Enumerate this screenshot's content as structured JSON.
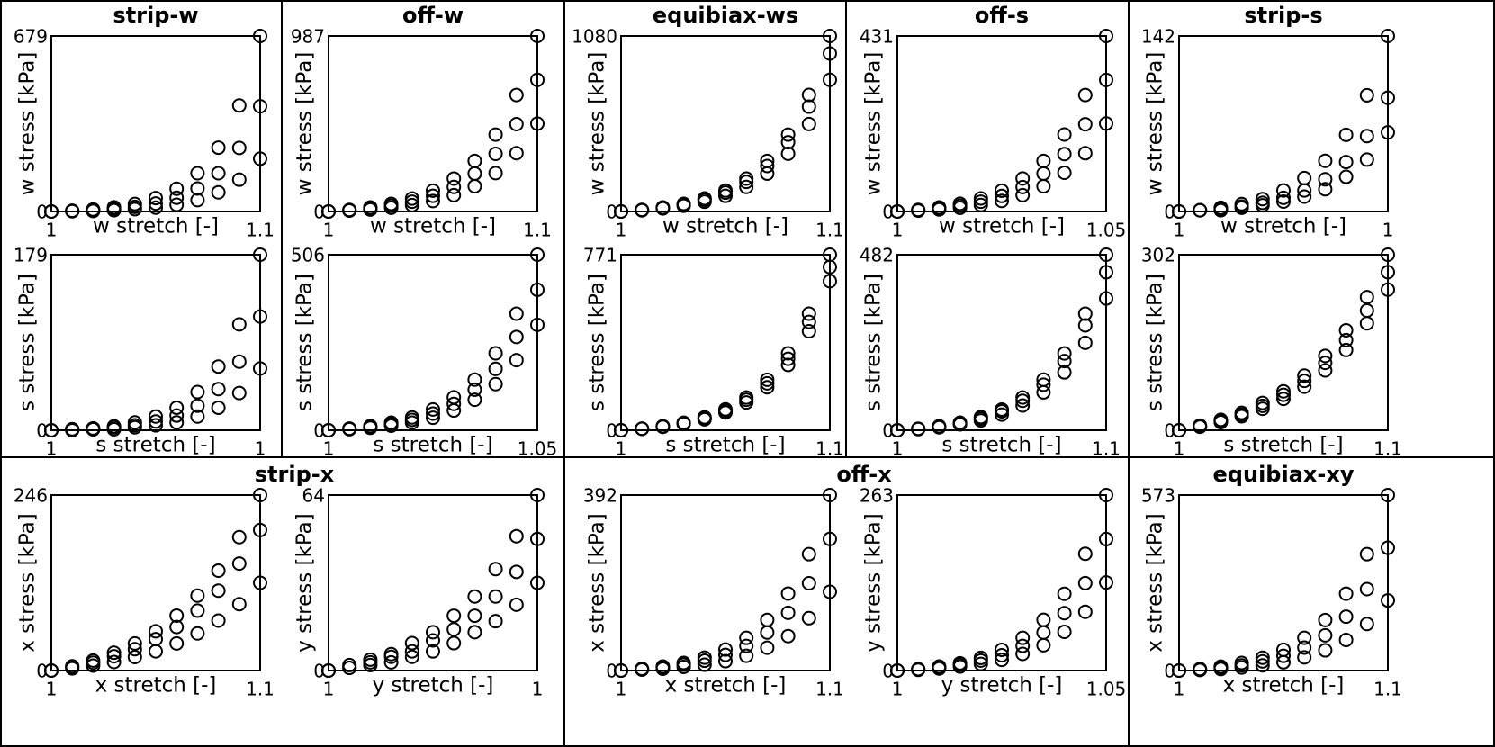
{
  "chart_data": [
    {
      "type": "scatter",
      "title": "strip-w",
      "xlabel": "w stretch [-]",
      "ylabel": "w stress [kPa]",
      "color": "#000000",
      "x": [
        1,
        1.01,
        1.02,
        1.03,
        1.04,
        1.05,
        1.06,
        1.07,
        1.08,
        1.09,
        1.1
      ],
      "xlim": [
        1,
        1.1
      ],
      "xticks": [
        1,
        1.1
      ],
      "ylim": [
        0,
        679
      ],
      "yticks": [
        0,
        679
      ],
      "series": [
        {
          "values": [
            0,
            3,
            8,
            16,
            29,
            52,
            88,
            148,
            247,
            410,
            679
          ]
        },
        {
          "values": [
            0,
            2,
            5,
            10,
            18,
            31,
            53,
            89,
            148,
            246,
            407
          ]
        },
        {
          "values": [
            0,
            1,
            2,
            5,
            9,
            15,
            26,
            44,
            74,
            123,
            204
          ]
        }
      ]
    },
    {
      "type": "scatter",
      "xlabel": "s stretch [-]",
      "ylabel": "s stress [kPa]",
      "color": "#000000",
      "x": [
        1,
        1.004,
        1.008,
        1.012,
        1.016,
        1.02,
        1.024,
        1.028,
        1.032,
        1.036,
        1.04
      ],
      "xlim": [
        1,
        1.04
      ],
      "xticks": [
        1,
        {
          "value": 1.04,
          "label": "1"
        }
      ],
      "ylim": [
        0,
        179
      ],
      "yticks": [
        0,
        179
      ],
      "series": [
        {
          "values": [
            0,
            1,
            2,
            4,
            8,
            14,
            23,
            39,
            65,
            108,
            179
          ]
        },
        {
          "values": [
            0,
            1,
            1,
            3,
            5,
            9,
            15,
            25,
            42,
            70,
            116
          ]
        },
        {
          "values": [
            0,
            0,
            1,
            1,
            3,
            5,
            8,
            14,
            23,
            38,
            63
          ]
        }
      ]
    },
    {
      "type": "scatter",
      "title": "off-w",
      "xlabel": "w stretch [-]",
      "ylabel": "w stress [kPa]",
      "color": "#000000",
      "x": [
        1,
        1.01,
        1.02,
        1.03,
        1.04,
        1.05,
        1.06,
        1.07,
        1.08,
        1.09,
        1.1
      ],
      "xlim": [
        1,
        1.1
      ],
      "xticks": [
        1,
        1.1
      ],
      "ylim": [
        0,
        987
      ],
      "yticks": [
        0,
        987
      ],
      "series": [
        {
          "values": [
            0,
            9,
            23,
            43,
            73,
            117,
            185,
            284,
            432,
            655,
            987
          ]
        },
        {
          "values": [
            0,
            7,
            17,
            32,
            55,
            88,
            138,
            213,
            324,
            491,
            740
          ]
        },
        {
          "values": [
            0,
            5,
            11,
            21,
            36,
            59,
            92,
            142,
            216,
            328,
            494
          ]
        }
      ]
    },
    {
      "type": "scatter",
      "xlabel": "s stretch [-]",
      "ylabel": "s stress [kPa]",
      "color": "#000000",
      "x": [
        1,
        1.005,
        1.01,
        1.015,
        1.02,
        1.025,
        1.03,
        1.035,
        1.04,
        1.045,
        1.05
      ],
      "xlim": [
        1,
        1.05
      ],
      "xticks": [
        1,
        1.05
      ],
      "ylim": [
        0,
        506
      ],
      "yticks": [
        0,
        506
      ],
      "series": [
        {
          "values": [
            0,
            5,
            12,
            22,
            37,
            60,
            95,
            146,
            222,
            336,
            506
          ]
        },
        {
          "values": [
            0,
            4,
            9,
            18,
            30,
            48,
            76,
            117,
            177,
            269,
            405
          ]
        },
        {
          "values": [
            0,
            3,
            7,
            13,
            22,
            36,
            57,
            88,
            133,
            202,
            304
          ]
        }
      ]
    },
    {
      "type": "scatter",
      "title": "equibiax-ws",
      "xlabel": "w stretch [-]",
      "ylabel": "w stress [kPa]",
      "color": "#000000",
      "x": [
        1,
        1.01,
        1.02,
        1.03,
        1.04,
        1.05,
        1.06,
        1.07,
        1.08,
        1.09,
        1.1
      ],
      "xlim": [
        1,
        1.1
      ],
      "xticks": [
        1,
        1.1
      ],
      "ylim": [
        0,
        1080
      ],
      "yticks": [
        0,
        1080
      ],
      "series": [
        {
          "values": [
            0,
            10,
            25,
            47,
            80,
            129,
            202,
            311,
            473,
            717,
            1080
          ]
        },
        {
          "values": [
            0,
            9,
            22,
            42,
            72,
            116,
            182,
            280,
            426,
            645,
            972
          ]
        },
        {
          "values": [
            0,
            7,
            19,
            35,
            60,
            96,
            151,
            233,
            355,
            538,
            810
          ]
        }
      ]
    },
    {
      "type": "scatter",
      "xlabel": "s stretch [-]",
      "ylabel": "s stress [kPa]",
      "color": "#000000",
      "x": [
        1,
        1.01,
        1.02,
        1.03,
        1.04,
        1.05,
        1.06,
        1.07,
        1.08,
        1.09,
        1.1
      ],
      "xlim": [
        1,
        1.1
      ],
      "xticks": [
        1,
        1.1
      ],
      "ylim": [
        0,
        771
      ],
      "yticks": [
        0,
        771
      ],
      "series": [
        {
          "values": [
            0,
            7,
            18,
            33,
            57,
            92,
            144,
            222,
            338,
            512,
            771
          ]
        },
        {
          "values": [
            0,
            7,
            16,
            31,
            53,
            85,
            134,
            206,
            314,
            476,
            717
          ]
        },
        {
          "values": [
            0,
            6,
            15,
            28,
            48,
            78,
            122,
            189,
            287,
            435,
            655
          ]
        }
      ]
    },
    {
      "type": "scatter",
      "title": "off-s",
      "xlabel": "w stretch [-]",
      "ylabel": "w stress [kPa]",
      "color": "#000000",
      "x": [
        1,
        1.005,
        1.01,
        1.015,
        1.02,
        1.025,
        1.03,
        1.035,
        1.04,
        1.045,
        1.05
      ],
      "xlim": [
        1,
        1.05
      ],
      "xticks": [
        1,
        1.05
      ],
      "ylim": [
        0,
        431
      ],
      "yticks": [
        0,
        431
      ],
      "series": [
        {
          "values": [
            0,
            4,
            10,
            19,
            32,
            51,
            81,
            124,
            189,
            286,
            431
          ]
        },
        {
          "values": [
            0,
            3,
            7,
            14,
            24,
            38,
            60,
            93,
            141,
            214,
            323
          ]
        },
        {
          "values": [
            0,
            2,
            5,
            9,
            16,
            26,
            40,
            62,
            95,
            143,
            216
          ]
        }
      ]
    },
    {
      "type": "scatter",
      "xlabel": "s stretch [-]",
      "ylabel": "s stress [kPa]",
      "color": "#000000",
      "x": [
        1,
        1.01,
        1.02,
        1.03,
        1.04,
        1.05,
        1.06,
        1.07,
        1.08,
        1.09,
        1.1
      ],
      "xlim": [
        1,
        1.1
      ],
      "xticks": [
        1,
        1.1
      ],
      "ylim": [
        0,
        482
      ],
      "yticks": [
        0,
        482
      ],
      "series": [
        {
          "values": [
            0,
            4,
            11,
            21,
            36,
            57,
            90,
            139,
            211,
            320,
            482
          ]
        },
        {
          "values": [
            0,
            4,
            10,
            19,
            32,
            52,
            81,
            125,
            190,
            288,
            434
          ]
        },
        {
          "values": [
            0,
            3,
            8,
            16,
            27,
            43,
            68,
            104,
            159,
            240,
            362
          ]
        }
      ]
    },
    {
      "type": "scatter",
      "title": "strip-s",
      "xlabel": "w stretch [-]",
      "ylabel": "w stress [kPa]",
      "color": "#000000",
      "x": [
        1,
        1.002,
        1.004,
        1.006,
        1.008,
        1.01,
        1.012,
        1.014,
        1.016,
        1.018,
        1.02
      ],
      "xlim": [
        1,
        1.02
      ],
      "xticks": [
        1,
        {
          "value": 1.02,
          "label": "1"
        }
      ],
      "ylim": [
        0,
        142
      ],
      "yticks": [
        0,
        142
      ],
      "series": [
        {
          "values": [
            0,
            1,
            3,
            6,
            10,
            17,
            27,
            41,
            62,
            94,
            142
          ]
        },
        {
          "values": [
            0,
            1,
            2,
            4,
            7,
            11,
            17,
            26,
            40,
            61,
            92
          ]
        },
        {
          "values": [
            0,
            1,
            1,
            3,
            5,
            8,
            12,
            18,
            28,
            42,
            64
          ]
        }
      ]
    },
    {
      "type": "scatter",
      "xlabel": "s stretch [-]",
      "ylabel": "s stress [kPa]",
      "color": "#000000",
      "x": [
        1,
        1.01,
        1.02,
        1.03,
        1.04,
        1.05,
        1.06,
        1.07,
        1.08,
        1.09,
        1.1
      ],
      "xlim": [
        1,
        1.1
      ],
      "xticks": [
        1,
        1.1
      ],
      "ylim": [
        0,
        302
      ],
      "yticks": [
        0,
        302
      ],
      "series": [
        {
          "values": [
            0,
            8,
            18,
            30,
            47,
            67,
            94,
            128,
            172,
            229,
            302
          ]
        },
        {
          "values": [
            0,
            7,
            16,
            27,
            42,
            61,
            85,
            116,
            155,
            206,
            272
          ]
        },
        {
          "values": [
            0,
            6,
            14,
            24,
            37,
            54,
            75,
            103,
            138,
            184,
            242
          ]
        }
      ]
    },
    {
      "type": "scatter",
      "title": "strip-x",
      "xlabel": "x stretch [-]",
      "ylabel": "x stress [kPa]",
      "color": "#000000",
      "x": [
        1,
        1.01,
        1.02,
        1.03,
        1.04,
        1.05,
        1.06,
        1.07,
        1.08,
        1.09,
        1.1
      ],
      "xlim": [
        1,
        1.1
      ],
      "xticks": [
        1,
        1.1
      ],
      "ylim": [
        0,
        246
      ],
      "yticks": [
        0,
        246
      ],
      "series": [
        {
          "values": [
            0,
            6,
            14,
            25,
            38,
            55,
            77,
            105,
            140,
            187,
            246
          ]
        },
        {
          "values": [
            0,
            5,
            11,
            20,
            30,
            44,
            61,
            84,
            112,
            150,
            197
          ]
        },
        {
          "values": [
            0,
            3,
            7,
            12,
            19,
            27,
            38,
            52,
            70,
            93,
            123
          ]
        }
      ]
    },
    {
      "type": "scatter",
      "xlabel": "y stretch [-]",
      "ylabel": "y stress [kPa]",
      "color": "#000000",
      "x": [
        1,
        1.003,
        1.006,
        1.009,
        1.012,
        1.015,
        1.018,
        1.021,
        1.024,
        1.027,
        1.03
      ],
      "xlim": [
        1,
        1.03
      ],
      "xticks": [
        1,
        {
          "value": 1.03,
          "label": "1"
        }
      ],
      "ylim": [
        0,
        64
      ],
      "yticks": [
        0,
        64
      ],
      "series": [
        {
          "values": [
            0,
            2,
            4,
            6,
            10,
            14,
            20,
            27,
            37,
            49,
            64
          ]
        },
        {
          "values": [
            0,
            1,
            3,
            5,
            7,
            11,
            15,
            20,
            27,
            36,
            48
          ]
        },
        {
          "values": [
            0,
            1,
            2,
            3,
            5,
            7,
            10,
            14,
            18,
            24,
            32
          ]
        }
      ]
    },
    {
      "type": "scatter",
      "title": "off-x",
      "xlabel": "x stretch [-]",
      "ylabel": "x stress [kPa]",
      "color": "#000000",
      "x": [
        1,
        1.01,
        1.02,
        1.03,
        1.04,
        1.05,
        1.06,
        1.07,
        1.08,
        1.09,
        1.1
      ],
      "xlim": [
        1,
        1.1
      ],
      "xticks": [
        1,
        1.1
      ],
      "ylim": [
        0,
        392
      ],
      "yticks": [
        0,
        392
      ],
      "series": [
        {
          "values": [
            0,
            4,
            9,
            17,
            29,
            47,
            73,
            113,
            172,
            260,
            392
          ]
        },
        {
          "values": [
            0,
            3,
            7,
            13,
            22,
            35,
            55,
            85,
            129,
            195,
            294
          ]
        },
        {
          "values": [
            0,
            2,
            4,
            8,
            13,
            21,
            33,
            51,
            77,
            117,
            176
          ]
        }
      ]
    },
    {
      "type": "scatter",
      "xlabel": "y stretch [-]",
      "ylabel": "y stress [kPa]",
      "color": "#000000",
      "x": [
        1,
        1.005,
        1.01,
        1.015,
        1.02,
        1.025,
        1.03,
        1.035,
        1.04,
        1.045,
        1.05
      ],
      "xlim": [
        1,
        1.05
      ],
      "xticks": [
        1,
        1.05
      ],
      "ylim": [
        0,
        263
      ],
      "yticks": [
        0,
        263
      ],
      "series": [
        {
          "values": [
            0,
            2,
            6,
            11,
            19,
            31,
            49,
            76,
            115,
            175,
            263
          ]
        },
        {
          "values": [
            0,
            2,
            5,
            9,
            15,
            23,
            37,
            57,
            86,
            131,
            197
          ]
        },
        {
          "values": [
            0,
            1,
            3,
            6,
            10,
            16,
            25,
            38,
            58,
            88,
            132
          ]
        }
      ]
    },
    {
      "type": "scatter",
      "title": "equibiax-xy",
      "xlabel": "x stretch [-]",
      "ylabel": "x stress [kPa]",
      "color": "#000000",
      "x": [
        1,
        1.01,
        1.02,
        1.03,
        1.04,
        1.05,
        1.06,
        1.07,
        1.08,
        1.09,
        1.1
      ],
      "xlim": [
        1,
        1.1
      ],
      "xticks": [
        1,
        1.1
      ],
      "ylim": [
        0,
        573
      ],
      "yticks": [
        0,
        573
      ],
      "series": [
        {
          "values": [
            0,
            5,
            13,
            25,
            42,
            68,
            107,
            165,
            251,
            380,
            573
          ]
        },
        {
          "values": [
            0,
            4,
            9,
            17,
            30,
            48,
            75,
            115,
            176,
            266,
            401
          ]
        },
        {
          "values": [
            0,
            2,
            5,
            10,
            17,
            27,
            43,
            66,
            100,
            152,
            229
          ]
        }
      ]
    }
  ]
}
